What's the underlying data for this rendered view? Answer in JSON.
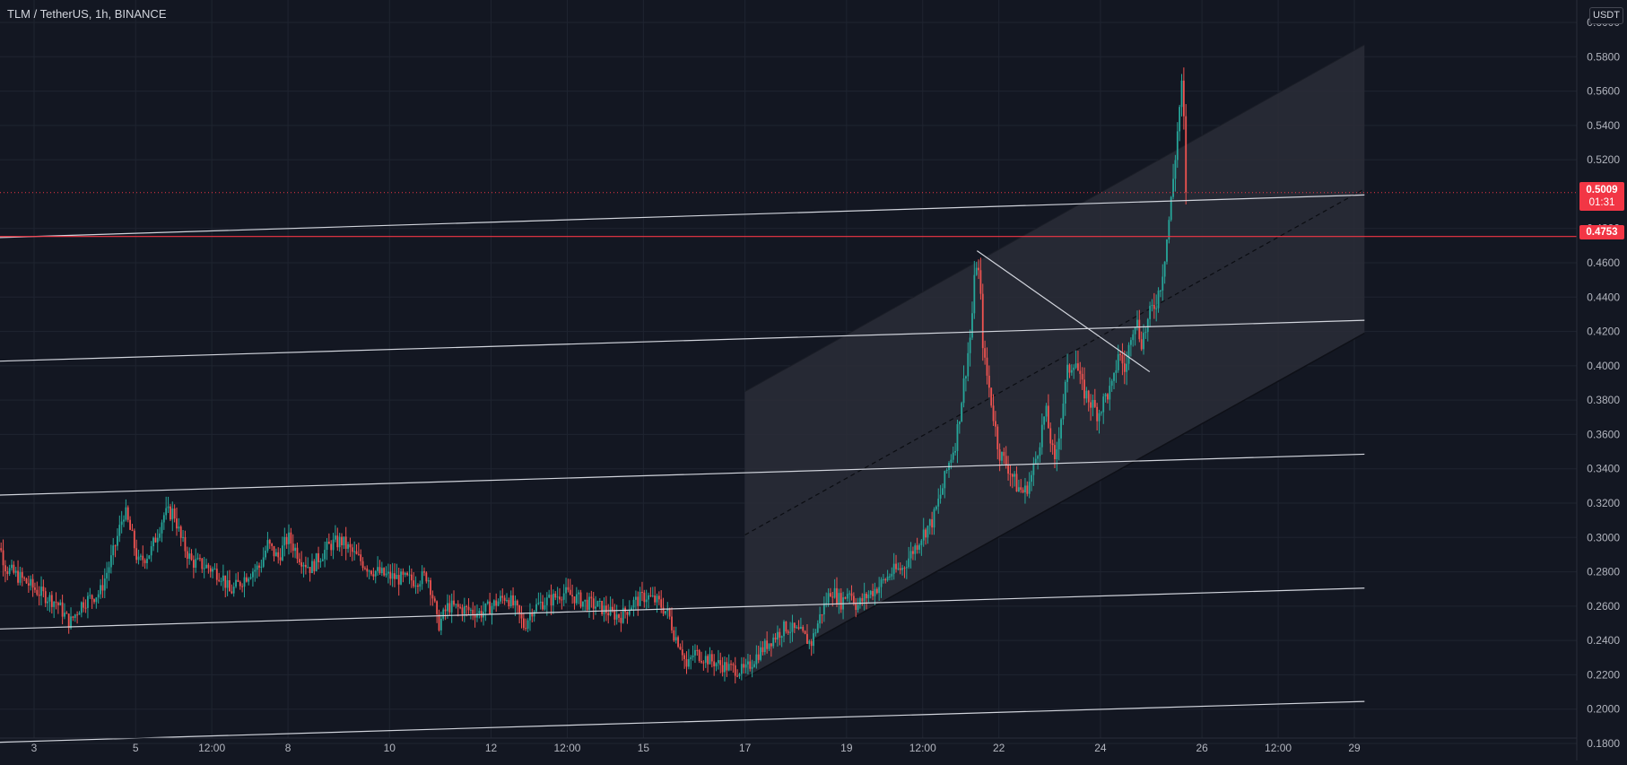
{
  "symbol_title": "TLM / TetherUS, 1h, BINANCE",
  "currency_badge": "USDT",
  "current_price": {
    "value": "0.5009",
    "countdown": "01:31",
    "color": "#f23645"
  },
  "level_price": {
    "value": "0.4753",
    "color": "#f23645"
  },
  "colors": {
    "background": "#131722",
    "grid": "#1f2430",
    "axis_text": "#b2b5be",
    "up_candle": "#26a69a",
    "down_candle": "#ef5350",
    "trendline": "#d1d4dc",
    "channel_fill": "#2a2d37"
  },
  "chart_data": {
    "type": "candlestick",
    "title": "TLM / TetherUS, 1h, BINANCE",
    "x_tick_labels": [
      "3",
      "5",
      "12:00",
      "8",
      "10",
      "12",
      "12:00",
      "15",
      "17",
      "19",
      "12:00",
      "22",
      "24",
      "26",
      "12:00",
      "29"
    ],
    "x_tick_days": [
      3,
      5,
      6.5,
      8,
      10,
      12,
      13.5,
      15,
      17,
      19,
      20.5,
      22,
      24,
      26,
      27.5,
      29
    ],
    "y_tick_labels": [
      "0.1800",
      "0.2000",
      "0.2200",
      "0.2400",
      "0.2600",
      "0.2800",
      "0.3000",
      "0.3200",
      "0.3400",
      "0.3600",
      "0.3800",
      "0.4000",
      "0.4200",
      "0.4400",
      "0.4600",
      "0.4800",
      "0.5200",
      "0.5400",
      "0.5600",
      "0.5800",
      "0.6000"
    ],
    "ylim": [
      0.173,
      0.6025
    ],
    "xlim": [
      2.1,
      29.3
    ],
    "grid": true,
    "price_path": [
      [
        2.1,
        0.285
      ],
      [
        2.25,
        0.302
      ],
      [
        2.45,
        0.282
      ],
      [
        2.75,
        0.276
      ],
      [
        3.1,
        0.268
      ],
      [
        3.45,
        0.262
      ],
      [
        3.7,
        0.25
      ],
      [
        3.95,
        0.262
      ],
      [
        4.3,
        0.268
      ],
      [
        4.55,
        0.29
      ],
      [
        4.78,
        0.316
      ],
      [
        4.95,
        0.298
      ],
      [
        5.05,
        0.285
      ],
      [
        5.3,
        0.292
      ],
      [
        5.55,
        0.313
      ],
      [
        5.75,
        0.315
      ],
      [
        5.9,
        0.298
      ],
      [
        6.1,
        0.286
      ],
      [
        6.4,
        0.283
      ],
      [
        6.7,
        0.278
      ],
      [
        6.85,
        0.268
      ],
      [
        7.0,
        0.272
      ],
      [
        7.25,
        0.28
      ],
      [
        7.45,
        0.283
      ],
      [
        7.6,
        0.296
      ],
      [
        7.8,
        0.288
      ],
      [
        8.0,
        0.3
      ],
      [
        8.25,
        0.288
      ],
      [
        8.45,
        0.282
      ],
      [
        8.65,
        0.29
      ],
      [
        8.85,
        0.296
      ],
      [
        9.05,
        0.298
      ],
      [
        9.3,
        0.29
      ],
      [
        9.6,
        0.282
      ],
      [
        9.9,
        0.278
      ],
      [
        10.2,
        0.276
      ],
      [
        10.5,
        0.275
      ],
      [
        10.75,
        0.278
      ],
      [
        10.88,
        0.262
      ],
      [
        10.95,
        0.248
      ],
      [
        11.15,
        0.26
      ],
      [
        11.5,
        0.258
      ],
      [
        11.8,
        0.256
      ],
      [
        12.1,
        0.262
      ],
      [
        12.3,
        0.266
      ],
      [
        12.5,
        0.258
      ],
      [
        12.65,
        0.248
      ],
      [
        12.8,
        0.258
      ],
      [
        13.0,
        0.262
      ],
      [
        13.2,
        0.264
      ],
      [
        13.4,
        0.268
      ],
      [
        13.6,
        0.266
      ],
      [
        13.85,
        0.262
      ],
      [
        14.1,
        0.26
      ],
      [
        14.35,
        0.256
      ],
      [
        14.55,
        0.254
      ],
      [
        14.8,
        0.262
      ],
      [
        15.05,
        0.266
      ],
      [
        15.3,
        0.262
      ],
      [
        15.5,
        0.255
      ],
      [
        15.6,
        0.244
      ],
      [
        15.75,
        0.236
      ],
      [
        15.85,
        0.224
      ],
      [
        16.0,
        0.233
      ],
      [
        16.2,
        0.23
      ],
      [
        16.5,
        0.226
      ],
      [
        16.7,
        0.224
      ],
      [
        17.0,
        0.222
      ],
      [
        17.25,
        0.232
      ],
      [
        17.5,
        0.24
      ],
      [
        17.8,
        0.248
      ],
      [
        18.1,
        0.244
      ],
      [
        18.3,
        0.238
      ],
      [
        18.5,
        0.256
      ],
      [
        18.7,
        0.27
      ],
      [
        18.9,
        0.262
      ],
      [
        19.05,
        0.27
      ],
      [
        19.2,
        0.26
      ],
      [
        19.4,
        0.266
      ],
      [
        19.65,
        0.272
      ],
      [
        19.9,
        0.28
      ],
      [
        20.1,
        0.282
      ],
      [
        20.3,
        0.292
      ],
      [
        20.5,
        0.302
      ],
      [
        20.7,
        0.31
      ],
      [
        20.9,
        0.33
      ],
      [
        21.0,
        0.342
      ],
      [
        21.15,
        0.356
      ],
      [
        21.3,
        0.388
      ],
      [
        21.45,
        0.42
      ],
      [
        21.55,
        0.462
      ],
      [
        21.62,
        0.45
      ],
      [
        21.7,
        0.405
      ],
      [
        21.82,
        0.385
      ],
      [
        22.0,
        0.35
      ],
      [
        22.2,
        0.34
      ],
      [
        22.35,
        0.33
      ],
      [
        22.5,
        0.326
      ],
      [
        22.65,
        0.336
      ],
      [
        22.8,
        0.356
      ],
      [
        22.92,
        0.374
      ],
      [
        23.0,
        0.36
      ],
      [
        23.1,
        0.342
      ],
      [
        23.22,
        0.37
      ],
      [
        23.35,
        0.396
      ],
      [
        23.5,
        0.405
      ],
      [
        23.62,
        0.388
      ],
      [
        23.78,
        0.38
      ],
      [
        23.95,
        0.372
      ],
      [
        24.1,
        0.382
      ],
      [
        24.25,
        0.388
      ],
      [
        24.35,
        0.408
      ],
      [
        24.5,
        0.396
      ],
      [
        24.6,
        0.42
      ],
      [
        24.7,
        0.428
      ],
      [
        24.8,
        0.414
      ],
      [
        24.9,
        0.422
      ],
      [
        25.0,
        0.432
      ],
      [
        25.1,
        0.438
      ],
      [
        25.2,
        0.45
      ],
      [
        25.3,
        0.472
      ],
      [
        25.4,
        0.498
      ],
      [
        25.48,
        0.524
      ],
      [
        25.55,
        0.548
      ],
      [
        25.6,
        0.562
      ],
      [
        25.65,
        0.538
      ],
      [
        25.7,
        0.501
      ]
    ],
    "horizontal_line": {
      "price": 0.4753
    },
    "current_price_line": {
      "price": 0.5009
    },
    "trendlines": [
      {
        "from": [
          2.1,
          0.4745
        ],
        "to": [
          29.2,
          0.4995
        ]
      },
      {
        "from": [
          2.1,
          0.4025
        ],
        "to": [
          29.2,
          0.4265
        ]
      },
      {
        "from": [
          2.1,
          0.3245
        ],
        "to": [
          29.2,
          0.3485
        ]
      },
      {
        "from": [
          2.1,
          0.2465
        ],
        "to": [
          29.2,
          0.2705
        ]
      },
      {
        "from": [
          2.1,
          0.1805
        ],
        "to": [
          29.2,
          0.2045
        ]
      },
      {
        "from": [
          21.57,
          0.467
        ],
        "to": [
          24.97,
          0.3965
        ]
      }
    ],
    "regression_channel": {
      "from_day": 17.0,
      "to_day": 29.2,
      "lower_start": 0.218,
      "lower_end": 0.419,
      "upper_start": 0.385,
      "upper_end": 0.587,
      "mid_start": 0.3015,
      "mid_end": 0.503
    }
  }
}
